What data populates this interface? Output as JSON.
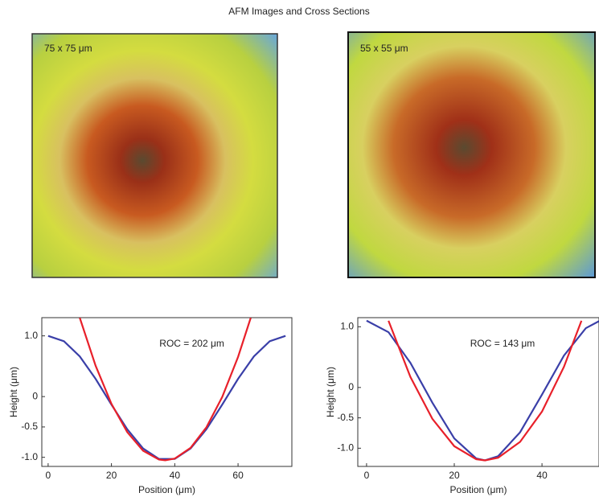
{
  "title": "AFM Images and Cross Sections",
  "images": [
    {
      "label": "75 x 75 μm"
    },
    {
      "label": "55 x 55 μm"
    }
  ],
  "chart_data": [
    {
      "type": "line",
      "annotation": "ROC = 202 μm",
      "x_label": "Position (μm)",
      "y_label": "Height (μm)",
      "xlim": [
        -2,
        77
      ],
      "xticks": [
        0,
        20,
        40,
        60
      ],
      "ylim": [
        -1.15,
        1.3
      ],
      "yticks": [
        {
          "value": 1,
          "label": "1.0"
        },
        0,
        -0.5,
        {
          "value": -1,
          "label": "-1.0"
        }
      ],
      "series": [
        {
          "color": "#3a3fa8",
          "x": [
            0,
            5,
            10,
            15,
            20,
            25,
            30,
            35,
            40,
            45,
            50,
            55,
            60,
            65,
            70,
            75
          ],
          "values": [
            1.0,
            0.911,
            0.661,
            0.292,
            -0.132,
            -0.538,
            -0.854,
            -1.027,
            -1.027,
            -0.854,
            -0.538,
            -0.132,
            0.292,
            0.661,
            0.911,
            1.0
          ]
        },
        {
          "color": "#e8202a",
          "x": [
            10,
            15,
            20,
            25,
            30,
            35,
            37,
            40,
            45,
            50,
            55,
            60,
            64
          ],
          "values": [
            1.297,
            0.508,
            -0.119,
            -0.586,
            -0.892,
            -1.037,
            -1.05,
            -1.021,
            -0.844,
            -0.506,
            -0.007,
            0.653,
            1.297
          ]
        }
      ]
    },
    {
      "type": "line",
      "annotation": "ROC = 143 μm",
      "x_label": "Position (μm)",
      "y_label": "Height (μm)",
      "xlim": [
        -2,
        53
      ],
      "xticks": [
        0,
        20,
        40
      ],
      "ylim": [
        -1.3,
        1.15
      ],
      "yticks": [
        {
          "value": 1,
          "label": "1.0"
        },
        0,
        -0.5,
        {
          "value": -1,
          "label": "-1.0"
        }
      ],
      "series": [
        {
          "color": "#3a3fa8",
          "x": [
            0,
            5,
            10,
            15,
            20,
            25,
            27,
            30,
            35,
            40,
            45,
            50,
            53
          ],
          "values": [
            1.1,
            0.911,
            0.405,
            -0.25,
            -0.839,
            -1.169,
            -1.2,
            -1.131,
            -0.738,
            -0.117,
            0.525,
            0.977,
            1.092
          ]
        },
        {
          "color": "#e8202a",
          "x": [
            5,
            10,
            15,
            20,
            25,
            27,
            30,
            35,
            40,
            45,
            49
          ],
          "values": [
            1.099,
            0.173,
            -0.516,
            -0.967,
            -1.181,
            -1.2,
            -1.157,
            -0.896,
            -0.397,
            0.339,
            1.099
          ]
        }
      ]
    }
  ]
}
